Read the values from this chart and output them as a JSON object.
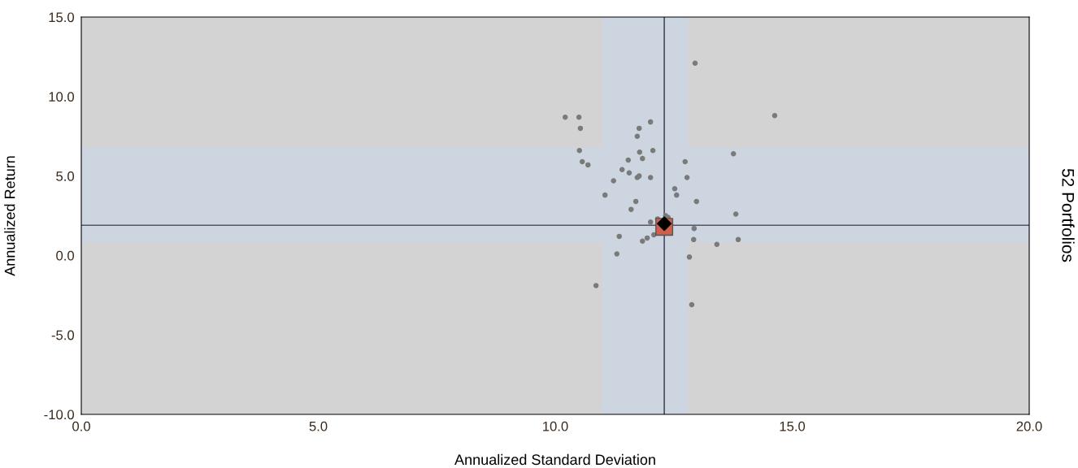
{
  "chart_data": {
    "type": "scatter",
    "xlabel": "Annualized Standard Deviation",
    "ylabel": "Annualized Return",
    "annotations": [
      "52 Portfolios"
    ],
    "xlim": [
      0,
      20
    ],
    "xticks": [
      {
        "value": 0,
        "label": "0.0"
      },
      {
        "value": 5,
        "label": "5.0"
      },
      {
        "value": 10,
        "label": "10.0"
      },
      {
        "value": 15,
        "label": "15.0"
      },
      {
        "value": 20,
        "label": "20.0"
      }
    ],
    "ylim": [
      -10,
      15
    ],
    "yticks": [
      {
        "value": -10,
        "label": "-10.0"
      },
      {
        "value": -5,
        "label": "-5.0"
      },
      {
        "value": 0,
        "label": "0.0"
      },
      {
        "value": 5,
        "label": "5.0"
      },
      {
        "value": 10,
        "label": "10.0"
      },
      {
        "value": 15,
        "label": "15.0"
      }
    ],
    "grid": false,
    "legend": false,
    "bands": [
      {
        "axis": "x",
        "from": 11.0,
        "to": 12.8,
        "color": "#cdd5e1"
      },
      {
        "axis": "y",
        "from": 0.8,
        "to": 6.8,
        "color": "#cdd5e1"
      }
    ],
    "ref_lines": [
      {
        "axis": "x",
        "value": 12.3,
        "color": "#333344"
      },
      {
        "axis": "y",
        "value": 1.9,
        "color": "#555566"
      }
    ],
    "series": [
      {
        "color": "#7a7a7a",
        "marker": "circle",
        "x": [
          12.95,
          10.21,
          10.5,
          14.63,
          10.53,
          12.01,
          11.77,
          11.73,
          10.51,
          11.78,
          12.06,
          13.76,
          10.57,
          10.69,
          11.54,
          11.84,
          12.74,
          11.41,
          11.56,
          12.78,
          11.23,
          11.73,
          11.77,
          12.01,
          12.52,
          12.56,
          11.05,
          12.98,
          11.7,
          11.6,
          13.81,
          12.01,
          12.16,
          12.33,
          12.38,
          11.35,
          11.84,
          11.94,
          12.08,
          12.93,
          12.92,
          13.41,
          13.86,
          11.3,
          12.83,
          10.86,
          12.88
        ],
        "values": [
          12.1,
          8.7,
          8.7,
          8.8,
          8.0,
          8.4,
          8.0,
          7.5,
          6.6,
          6.5,
          6.6,
          6.4,
          5.9,
          5.7,
          6.0,
          6.1,
          5.9,
          5.4,
          5.2,
          4.9,
          4.7,
          4.9,
          5.0,
          4.9,
          4.2,
          3.8,
          3.8,
          3.4,
          3.4,
          2.9,
          2.6,
          2.1,
          2.3,
          2.5,
          2.4,
          1.2,
          0.9,
          1.1,
          1.3,
          1.7,
          1.0,
          0.7,
          1.0,
          0.1,
          -0.1,
          -1.9,
          -3.1
        ]
      },
      {
        "color": "#d0604c",
        "marker": "square",
        "x": [
          12.3
        ],
        "values": [
          1.8
        ]
      },
      {
        "color": "#000000",
        "marker": "diamond",
        "x": [
          12.3
        ],
        "values": [
          2.0
        ]
      }
    ]
  }
}
